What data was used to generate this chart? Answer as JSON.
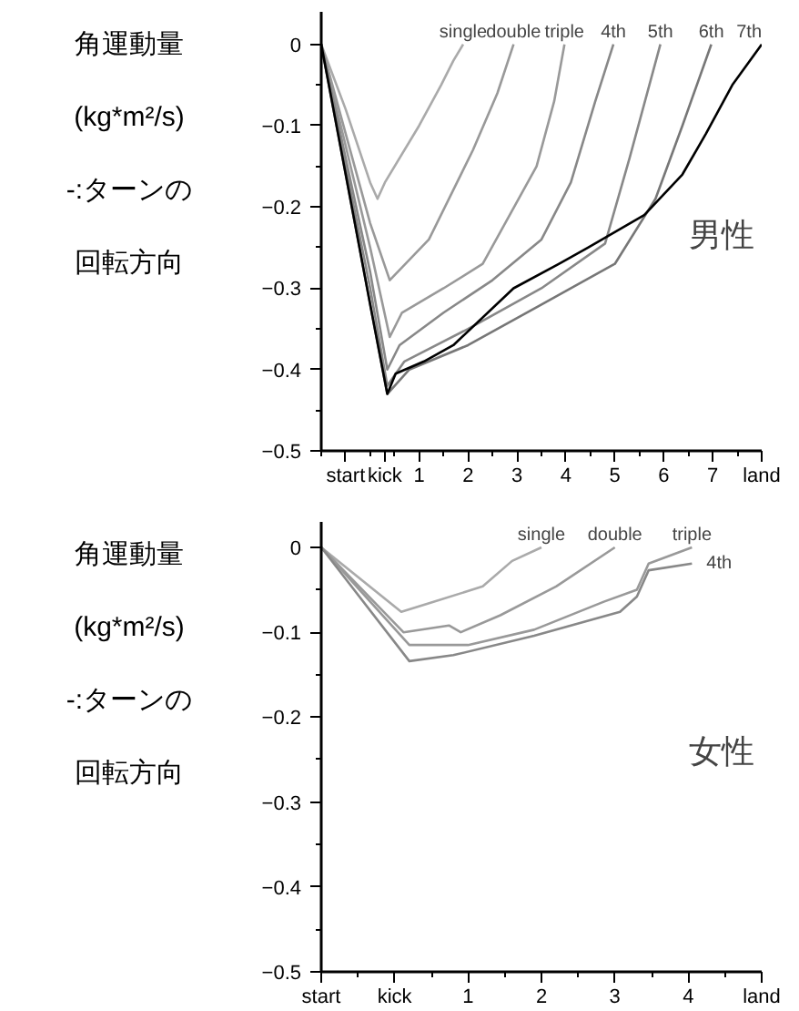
{
  "chart_data": [
    {
      "type": "line",
      "ylabel": "角運動量 (kg*m²/s) -:ターンの回転方向",
      "annotations": [
        "男性"
      ],
      "xlim": [
        -1,
        8
      ],
      "xticks": [
        {
          "value": -0.5,
          "label": "start"
        },
        {
          "value": 0.3,
          "label": "kick"
        },
        1,
        2,
        3,
        4,
        5,
        6,
        7,
        {
          "value": 8,
          "label": "land"
        }
      ],
      "ylim": [
        -0.5,
        0.04
      ],
      "yticks": [
        0,
        -0.1,
        -0.2,
        -0.3,
        -0.4,
        -0.5
      ],
      "grid": false,
      "line_style": "solid",
      "marker": "none",
      "series": [
        {
          "name": "single",
          "color": "#aaaaaa",
          "x": [
            -1,
            -0.5,
            0,
            0.15,
            0.3,
            1.0,
            1.45,
            1.7,
            1.9
          ],
          "values": [
            0,
            -0.08,
            -0.17,
            -0.19,
            -0.17,
            -0.1,
            -0.05,
            -0.02,
            0
          ]
        },
        {
          "name": "double",
          "color": "#999999",
          "x": [
            -1,
            0,
            0.4,
            1.2,
            2.1,
            2.6,
            2.93
          ],
          "values": [
            0,
            -0.22,
            -0.29,
            -0.24,
            -0.13,
            -0.06,
            0
          ]
        },
        {
          "name": "triple",
          "color": "#999999",
          "x": [
            -1,
            0,
            0.4,
            0.65,
            1.5,
            2.3,
            3.4,
            3.76,
            3.97
          ],
          "values": [
            0,
            -0.25,
            -0.36,
            -0.33,
            -0.3,
            -0.27,
            -0.15,
            -0.07,
            0
          ]
        },
        {
          "name": "4th",
          "color": "#888888",
          "x": [
            -1,
            0,
            0.35,
            0.6,
            1.5,
            2.5,
            3.5,
            4.1,
            4.6,
            4.97
          ],
          "values": [
            0,
            -0.28,
            -0.4,
            -0.37,
            -0.33,
            -0.29,
            -0.24,
            -0.17,
            -0.07,
            0
          ]
        },
        {
          "name": "5th",
          "color": "#888888",
          "x": [
            -1,
            0,
            0.35,
            0.7,
            2,
            3.5,
            4.8,
            5.3,
            5.93
          ],
          "values": [
            0,
            -0.3,
            -0.42,
            -0.39,
            -0.35,
            -0.3,
            -0.245,
            -0.14,
            0
          ]
        },
        {
          "name": "6th",
          "color": "#777777",
          "x": [
            -1,
            0,
            0.35,
            0.8,
            2,
            3.5,
            5,
            5.83,
            6.38,
            6.97
          ],
          "values": [
            0,
            -0.32,
            -0.43,
            -0.4,
            -0.37,
            -0.32,
            -0.27,
            -0.19,
            -0.1,
            0
          ]
        },
        {
          "name": "7th",
          "color": "#000000",
          "x": [
            -1,
            0,
            0.35,
            0.52,
            1.1,
            1.7,
            2.93,
            3.86,
            4.45,
            5.6,
            6.38,
            6.86,
            7.4,
            8.0
          ],
          "values": [
            0,
            -0.32,
            -0.43,
            -0.405,
            -0.39,
            -0.37,
            -0.3,
            -0.27,
            -0.25,
            -0.21,
            -0.16,
            -0.11,
            -0.05,
            0
          ]
        }
      ]
    },
    {
      "type": "line",
      "ylabel": "角運動量 (kg*m²/s) -:ターンの回転方向",
      "annotations": [
        "女性"
      ],
      "xlim": [
        -1,
        5
      ],
      "xticks": [
        {
          "value": -1,
          "label": "start"
        },
        {
          "value": 0,
          "label": "kick"
        },
        1,
        2,
        3,
        4,
        {
          "value": 5,
          "label": "land"
        }
      ],
      "ylim": [
        -0.5,
        0.03
      ],
      "yticks": [
        0,
        -0.1,
        -0.2,
        -0.3,
        -0.4,
        -0.5
      ],
      "grid": false,
      "line_style": "solid",
      "marker": "none",
      "series": [
        {
          "name": "single",
          "color": "#aaaaaa",
          "x": [
            -1,
            0.09,
            0.5,
            1.2,
            1.6,
            2.0
          ],
          "values": [
            0,
            -0.076,
            -0.065,
            -0.046,
            -0.016,
            0
          ]
        },
        {
          "name": "double",
          "color": "#999999",
          "x": [
            -1,
            0.12,
            0.74,
            0.9,
            1.44,
            2.2,
            3.0
          ],
          "values": [
            0,
            -0.1,
            -0.092,
            -0.1,
            -0.08,
            -0.046,
            0
          ]
        },
        {
          "name": "triple",
          "color": "#999999",
          "x": [
            -1,
            0.2,
            1,
            1.9,
            2.85,
            3.3,
            3.46,
            4.05
          ],
          "values": [
            0,
            -0.115,
            -0.115,
            -0.097,
            -0.064,
            -0.05,
            -0.019,
            0
          ]
        },
        {
          "name": "4th",
          "color": "#888888",
          "x": [
            -1,
            0.2,
            0.8,
            1.9,
            3.07,
            3.3,
            3.46,
            4.05
          ],
          "values": [
            0,
            -0.134,
            -0.127,
            -0.104,
            -0.076,
            -0.058,
            -0.027,
            -0.019
          ]
        }
      ]
    }
  ]
}
